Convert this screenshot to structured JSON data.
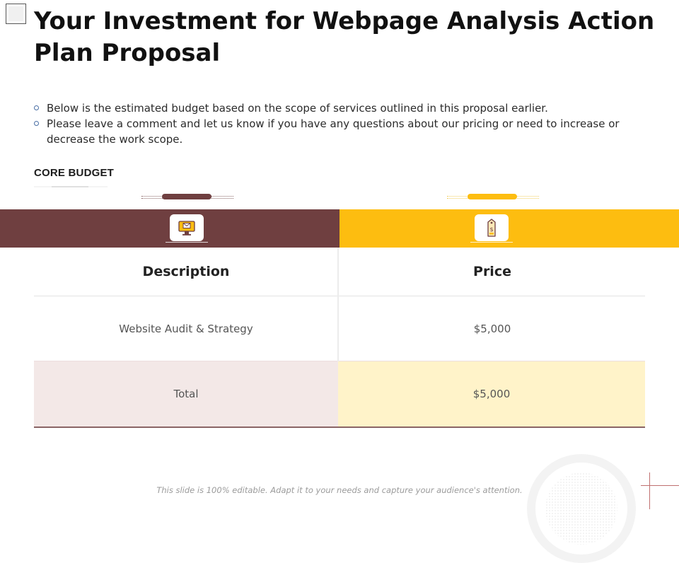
{
  "slide": {
    "title": "Your Investment for Webpage Analysis Action Plan Proposal",
    "bullets": [
      "Below is the estimated budget based on the scope of services outlined in this proposal earlier.",
      "Please leave a comment and let us know if you have any questions about our pricing or need to increase or decrease the work scope."
    ],
    "section_label": "CORE BUDGET",
    "footer_note": "This slide is 100% editable. Adapt it to your needs and capture your audience's attention."
  },
  "colors": {
    "left_band": "#6f3f40",
    "right_band": "#fdbd10",
    "total_left": "#f3e8e7",
    "total_right": "#fff3c9",
    "rule": "#8a6465"
  },
  "icons": {
    "left": "monitor-mail-icon",
    "right": "price-tag-icon"
  },
  "table": {
    "headers": [
      "Description",
      "Price"
    ],
    "rows": [
      [
        "Website Audit & Strategy",
        "$5,000"
      ]
    ],
    "total": [
      "Total",
      "$5,000"
    ]
  }
}
